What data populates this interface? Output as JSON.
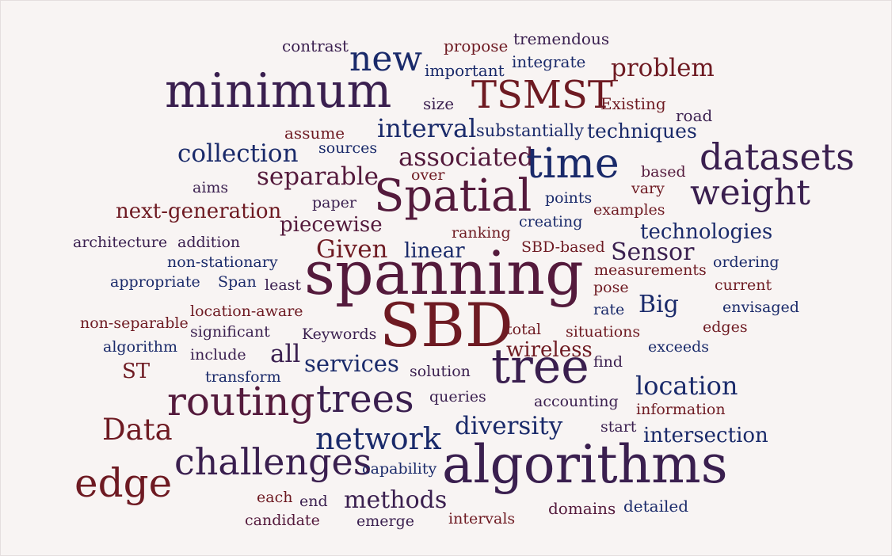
{
  "colors": {
    "navy": "#1a2a6a",
    "purple": "#3a1f4f",
    "red": "#6e1a22",
    "plum": "#541a3c",
    "background": "#f8f4f3"
  },
  "words": [
    "contrast",
    "propose",
    "tremendous",
    "new",
    "important",
    "integrate",
    "problem",
    "minimum",
    "size",
    "TSMST",
    "Existing",
    "road",
    "assume",
    "interval",
    "substantially",
    "techniques",
    "sources",
    "collection",
    "associated",
    "time",
    "datasets",
    "over",
    "based",
    "separable",
    "aims",
    "paper",
    "Spatial",
    "vary",
    "points",
    "weight",
    "next-generation",
    "examples",
    "creating",
    "piecewise",
    "technologies",
    "ranking",
    "architecture",
    "addition",
    "Given",
    "linear",
    "SBD-based",
    "Sensor",
    "ordering",
    "non-stationary",
    "measurements",
    "appropriate",
    "Span",
    "least",
    "spanning",
    "pose",
    "current",
    "location-aware",
    "Big",
    "rate",
    "envisaged",
    "non-separable",
    "SBD",
    "significant",
    "total",
    "situations",
    "edges",
    "Keywords",
    "algorithm",
    "exceeds",
    "wireless",
    "include",
    "all",
    "find",
    "ST",
    "services",
    "tree",
    "transform",
    "solution",
    "location",
    "queries",
    "routing",
    "trees",
    "accounting",
    "information",
    "Data",
    "diversity",
    "start",
    "intersection",
    "network",
    "challenges",
    "algorithms",
    "capability",
    "edge",
    "each",
    "methods",
    "end",
    "domains",
    "detailed",
    "candidate",
    "emerge",
    "intervals"
  ]
}
